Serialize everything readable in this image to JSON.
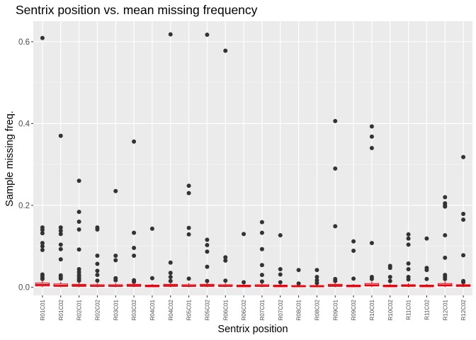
{
  "chart_data": {
    "type": "box",
    "title": "Sentrix position vs. mean missing frequency",
    "xlabel": "Sentrix position",
    "ylabel": "Sample missing freq.",
    "ylim": [
      -0.02,
      0.65
    ],
    "yticks": [
      0.0,
      0.2,
      0.4,
      0.6
    ],
    "ytick_labels": [
      "0.0",
      "0.2",
      "0.4",
      "0.6"
    ],
    "grid": true,
    "legend": "none",
    "colors": {
      "panel": "#ebebeb",
      "grid_major": "#ffffff",
      "box": "#e8000b",
      "outlier": "#333333"
    },
    "categories": [
      "R01C01",
      "R01C02",
      "R02C01",
      "R02C02",
      "R03C01",
      "R03C02",
      "R04C01",
      "R04C02",
      "R05C01",
      "R05C02",
      "R06C01",
      "R06C02",
      "R07C01",
      "R07C02",
      "R08C01",
      "R08C02",
      "R09C01",
      "R09C02",
      "R10C01",
      "R10C02",
      "R11C01",
      "R11C02",
      "R12C01",
      "R12C02"
    ],
    "boxes": [
      {
        "q1": 0.003,
        "median": 0.006,
        "q3": 0.01,
        "whisker_low": 0.0,
        "whisker_high": 0.016
      },
      {
        "q1": 0.002,
        "median": 0.004,
        "q3": 0.008,
        "whisker_low": 0.0,
        "whisker_high": 0.013
      },
      {
        "q1": 0.002,
        "median": 0.004,
        "q3": 0.007,
        "whisker_low": 0.0,
        "whisker_high": 0.011
      },
      {
        "q1": 0.002,
        "median": 0.003,
        "q3": 0.006,
        "whisker_low": 0.0,
        "whisker_high": 0.01
      },
      {
        "q1": 0.002,
        "median": 0.003,
        "q3": 0.006,
        "whisker_low": 0.0,
        "whisker_high": 0.01
      },
      {
        "q1": 0.002,
        "median": 0.004,
        "q3": 0.007,
        "whisker_low": 0.0,
        "whisker_high": 0.011
      },
      {
        "q1": 0.001,
        "median": 0.003,
        "q3": 0.005,
        "whisker_low": 0.0,
        "whisker_high": 0.008
      },
      {
        "q1": 0.002,
        "median": 0.004,
        "q3": 0.007,
        "whisker_low": 0.0,
        "whisker_high": 0.011
      },
      {
        "q1": 0.002,
        "median": 0.003,
        "q3": 0.006,
        "whisker_low": 0.0,
        "whisker_high": 0.01
      },
      {
        "q1": 0.002,
        "median": 0.004,
        "q3": 0.007,
        "whisker_low": 0.0,
        "whisker_high": 0.011
      },
      {
        "q1": 0.002,
        "median": 0.003,
        "q3": 0.006,
        "whisker_low": 0.0,
        "whisker_high": 0.01
      },
      {
        "q1": 0.001,
        "median": 0.003,
        "q3": 0.005,
        "whisker_low": 0.0,
        "whisker_high": 0.008
      },
      {
        "q1": 0.002,
        "median": 0.003,
        "q3": 0.006,
        "whisker_low": 0.0,
        "whisker_high": 0.01
      },
      {
        "q1": 0.001,
        "median": 0.003,
        "q3": 0.005,
        "whisker_low": 0.0,
        "whisker_high": 0.008
      },
      {
        "q1": 0.001,
        "median": 0.002,
        "q3": 0.004,
        "whisker_low": 0.0,
        "whisker_high": 0.007
      },
      {
        "q1": 0.001,
        "median": 0.002,
        "q3": 0.004,
        "whisker_low": 0.0,
        "whisker_high": 0.007
      },
      {
        "q1": 0.002,
        "median": 0.004,
        "q3": 0.007,
        "whisker_low": 0.0,
        "whisker_high": 0.011
      },
      {
        "q1": 0.001,
        "median": 0.003,
        "q3": 0.005,
        "whisker_low": 0.0,
        "whisker_high": 0.008
      },
      {
        "q1": 0.003,
        "median": 0.005,
        "q3": 0.009,
        "whisker_low": 0.0,
        "whisker_high": 0.014
      },
      {
        "q1": 0.001,
        "median": 0.003,
        "q3": 0.005,
        "whisker_low": 0.0,
        "whisker_high": 0.008
      },
      {
        "q1": 0.002,
        "median": 0.004,
        "q3": 0.006,
        "whisker_low": 0.0,
        "whisker_high": 0.01
      },
      {
        "q1": 0.001,
        "median": 0.003,
        "q3": 0.005,
        "whisker_low": 0.0,
        "whisker_high": 0.008
      },
      {
        "q1": 0.003,
        "median": 0.005,
        "q3": 0.009,
        "whisker_low": 0.0,
        "whisker_high": 0.014
      },
      {
        "q1": 0.002,
        "median": 0.004,
        "q3": 0.006,
        "whisker_low": 0.0,
        "whisker_high": 0.01
      }
    ],
    "outliers": [
      [
        0.609,
        0.146,
        0.14,
        0.132,
        0.108,
        0.1,
        0.091,
        0.031,
        0.027,
        0.022,
        0.02
      ],
      [
        0.37,
        0.146,
        0.138,
        0.13,
        0.104,
        0.093,
        0.068,
        0.029,
        0.025,
        0.021
      ],
      [
        0.26,
        0.184,
        0.16,
        0.141,
        0.092,
        0.044,
        0.037,
        0.03,
        0.025,
        0.02,
        0.016
      ],
      [
        0.146,
        0.141,
        0.077,
        0.057,
        0.04,
        0.03,
        0.016
      ],
      [
        0.235,
        0.077,
        0.066,
        0.022,
        0.017
      ],
      [
        0.356,
        0.133,
        0.096,
        0.077,
        0.017,
        0.013
      ],
      [
        0.143,
        0.022
      ],
      [
        0.618,
        0.06,
        0.035,
        0.025,
        0.015
      ],
      [
        0.248,
        0.23,
        0.145,
        0.129,
        0.021
      ],
      [
        0.617,
        0.116,
        0.103,
        0.087,
        0.05,
        0.015
      ],
      [
        0.578,
        0.073,
        0.065,
        0.016
      ],
      [
        0.13,
        0.012
      ],
      [
        0.159,
        0.133,
        0.093,
        0.054,
        0.03,
        0.014
      ],
      [
        0.127,
        0.044,
        0.031,
        0.012
      ],
      [
        0.042,
        0.009
      ],
      [
        0.042,
        0.025,
        0.017,
        0.01
      ],
      [
        0.406,
        0.29,
        0.149,
        0.02,
        0.015
      ],
      [
        0.112,
        0.089,
        0.021
      ],
      [
        0.393,
        0.368,
        0.34,
        0.108,
        0.025,
        0.02
      ],
      [
        0.052,
        0.047,
        0.025,
        0.015
      ],
      [
        0.129,
        0.119,
        0.104,
        0.058,
        0.044,
        0.025,
        0.019
      ],
      [
        0.119,
        0.047,
        0.042,
        0.02
      ],
      [
        0.22,
        0.205,
        0.2,
        0.197,
        0.127,
        0.072,
        0.03,
        0.025,
        0.02
      ],
      [
        0.318,
        0.179,
        0.165,
        0.078,
        0.015,
        0.012
      ]
    ]
  }
}
